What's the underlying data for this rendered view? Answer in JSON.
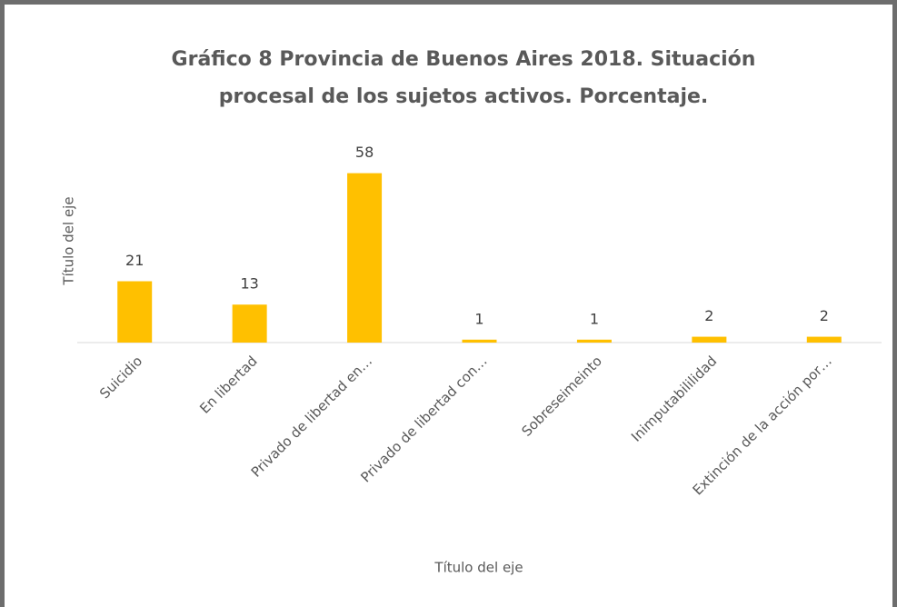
{
  "chart_data": {
    "type": "bar",
    "title": "Gráfico 8 Provincia de Buenos Aires 2018. Situación procesal de los sujetos activos. Porcentaje.",
    "x_label": "Título del eje",
    "y_label": "Título del eje",
    "categories": [
      "Suicidio",
      "En libertad",
      "Privado de libertad en…",
      "Privado de libertad con…",
      "Sobreseimeinto",
      "Inimputabililidad",
      "Extinción de la acción por…"
    ],
    "values": [
      21,
      13,
      58,
      1,
      1,
      2,
      2
    ],
    "color": "#ffc000",
    "ylim": [
      0,
      70
    ]
  }
}
